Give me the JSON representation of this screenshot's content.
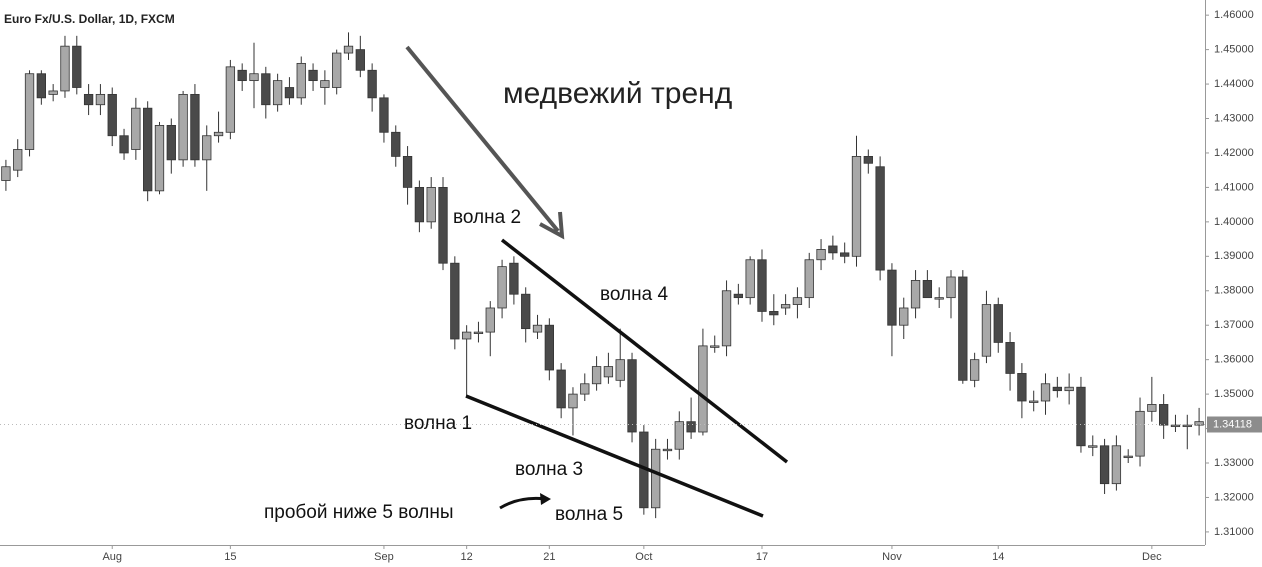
{
  "chart_data": {
    "type": "candlestick",
    "title": "Euro Fx/U.S. Dollar, 1D, FXCM",
    "categories": [
      null,
      null,
      null,
      null,
      null,
      null,
      null,
      null,
      null,
      "Aug",
      null,
      null,
      null,
      null,
      null,
      null,
      null,
      null,
      null,
      "15",
      null,
      null,
      null,
      null,
      null,
      null,
      null,
      null,
      null,
      null,
      null,
      null,
      "Sep",
      null,
      null,
      null,
      null,
      null,
      null,
      "12",
      null,
      null,
      null,
      null,
      null,
      null,
      "21",
      null,
      null,
      null,
      null,
      null,
      null,
      null,
      "Oct",
      null,
      null,
      null,
      null,
      null,
      null,
      null,
      null,
      null,
      "17",
      null,
      null,
      null,
      null,
      null,
      null,
      null,
      null,
      null,
      null,
      "Nov",
      null,
      null,
      null,
      null,
      null,
      null,
      null,
      null,
      "14",
      null,
      null,
      null,
      null,
      null,
      null,
      null,
      null,
      null,
      null,
      null,
      null,
      "Dec",
      null,
      null,
      null,
      null
    ],
    "open": [
      1.412,
      1.415,
      1.421,
      1.443,
      1.437,
      1.438,
      1.451,
      1.437,
      1.434,
      1.437,
      1.425,
      1.421,
      1.433,
      1.409,
      1.428,
      1.418,
      1.437,
      1.418,
      1.425,
      1.426,
      1.444,
      1.441,
      1.443,
      1.434,
      1.439,
      1.436,
      1.444,
      1.439,
      1.439,
      1.449,
      1.45,
      1.444,
      1.436,
      1.426,
      1.419,
      1.41,
      1.4,
      1.41,
      1.388,
      1.366,
      1.368,
      1.368,
      1.375,
      1.388,
      1.379,
      1.368,
      1.37,
      1.357,
      1.346,
      1.35,
      1.353,
      1.355,
      1.354,
      1.36,
      1.339,
      1.317,
      1.334,
      1.334,
      1.342,
      1.339,
      1.364,
      1.364,
      1.379,
      1.378,
      1.389,
      1.374,
      1.375,
      1.376,
      1.378,
      1.389,
      1.393,
      1.391,
      1.39,
      1.419,
      1.416,
      1.386,
      1.37,
      1.375,
      1.383,
      1.378,
      1.378,
      1.384,
      1.354,
      1.361,
      1.376,
      1.365,
      1.356,
      1.348,
      1.348,
      1.352,
      1.351,
      1.352,
      1.335,
      1.335,
      1.324,
      1.332,
      1.332,
      1.345,
      1.347,
      1.341,
      1.341,
      1.341
    ],
    "high": [
      1.418,
      1.424,
      1.444,
      1.444,
      1.44,
      1.454,
      1.454,
      1.44,
      1.44,
      1.439,
      1.427,
      1.436,
      1.435,
      1.429,
      1.43,
      1.438,
      1.44,
      1.428,
      1.432,
      1.447,
      1.446,
      1.452,
      1.445,
      1.443,
      1.442,
      1.448,
      1.446,
      1.444,
      1.45,
      1.455,
      1.454,
      1.446,
      1.437,
      1.428,
      1.422,
      1.412,
      1.413,
      1.413,
      1.39,
      1.37,
      1.371,
      1.377,
      1.389,
      1.39,
      1.381,
      1.373,
      1.372,
      1.359,
      1.352,
      1.356,
      1.361,
      1.362,
      1.369,
      1.362,
      1.341,
      1.337,
      1.337,
      1.345,
      1.349,
      1.369,
      1.367,
      1.383,
      1.382,
      1.39,
      1.392,
      1.379,
      1.379,
      1.381,
      1.391,
      1.395,
      1.396,
      1.394,
      1.425,
      1.421,
      1.419,
      1.388,
      1.378,
      1.386,
      1.386,
      1.381,
      1.386,
      1.386,
      1.362,
      1.38,
      1.378,
      1.368,
      1.359,
      1.351,
      1.356,
      1.355,
      1.356,
      1.355,
      1.338,
      1.337,
      1.338,
      1.334,
      1.349,
      1.355,
      1.35,
      1.344,
      1.344,
      1.346
    ],
    "low": [
      1.409,
      1.413,
      1.419,
      1.434,
      1.435,
      1.436,
      1.437,
      1.431,
      1.431,
      1.422,
      1.418,
      1.418,
      1.406,
      1.408,
      1.414,
      1.416,
      1.416,
      1.409,
      1.423,
      1.424,
      1.438,
      1.433,
      1.43,
      1.432,
      1.434,
      1.434,
      1.438,
      1.434,
      1.437,
      1.447,
      1.442,
      1.432,
      1.423,
      1.416,
      1.405,
      1.397,
      1.398,
      1.386,
      1.363,
      1.349,
      1.365,
      1.361,
      1.372,
      1.376,
      1.365,
      1.366,
      1.354,
      1.343,
      1.338,
      1.348,
      1.351,
      1.353,
      1.352,
      1.336,
      1.315,
      1.314,
      1.331,
      1.331,
      1.337,
      1.338,
      1.362,
      1.361,
      1.376,
      1.376,
      1.371,
      1.37,
      1.373,
      1.372,
      1.375,
      1.386,
      1.389,
      1.388,
      1.387,
      1.414,
      1.383,
      1.361,
      1.366,
      1.372,
      1.378,
      1.375,
      1.372,
      1.353,
      1.352,
      1.359,
      1.362,
      1.351,
      1.343,
      1.345,
      1.344,
      1.349,
      1.347,
      1.333,
      1.332,
      1.321,
      1.322,
      1.33,
      1.329,
      1.342,
      1.337,
      1.339,
      1.334,
      1.338
    ],
    "close": [
      1.416,
      1.421,
      1.443,
      1.436,
      1.438,
      1.451,
      1.439,
      1.434,
      1.437,
      1.425,
      1.42,
      1.433,
      1.409,
      1.428,
      1.418,
      1.437,
      1.418,
      1.425,
      1.426,
      1.445,
      1.441,
      1.443,
      1.434,
      1.441,
      1.436,
      1.446,
      1.441,
      1.441,
      1.449,
      1.451,
      1.444,
      1.436,
      1.426,
      1.419,
      1.41,
      1.4,
      1.41,
      1.388,
      1.366,
      1.368,
      1.368,
      1.375,
      1.387,
      1.379,
      1.369,
      1.37,
      1.357,
      1.346,
      1.35,
      1.353,
      1.358,
      1.358,
      1.36,
      1.339,
      1.317,
      1.334,
      1.334,
      1.342,
      1.339,
      1.364,
      1.364,
      1.38,
      1.378,
      1.389,
      1.374,
      1.373,
      1.376,
      1.378,
      1.389,
      1.392,
      1.391,
      1.39,
      1.419,
      1.417,
      1.386,
      1.37,
      1.375,
      1.383,
      1.378,
      1.378,
      1.384,
      1.354,
      1.36,
      1.376,
      1.365,
      1.356,
      1.348,
      1.348,
      1.353,
      1.351,
      1.352,
      1.335,
      1.335,
      1.324,
      1.335,
      1.332,
      1.345,
      1.347,
      1.341,
      1.341,
      1.341,
      1.342
    ],
    "up_color": "#a8a8a8",
    "down_color": "#4a4a4a",
    "ylim": [
      1.3062,
      1.4644
    ],
    "yticks": [
      {
        "value": 1.31,
        "label": "1.31000"
      },
      {
        "value": 1.32,
        "label": "1.32000"
      },
      {
        "value": 1.33,
        "label": "1.33000"
      },
      {
        "value": 1.34,
        "label": "1.34000"
      },
      {
        "value": 1.35,
        "label": "1.35000"
      },
      {
        "value": 1.36,
        "label": "1.36000"
      },
      {
        "value": 1.37,
        "label": "1.37000"
      },
      {
        "value": 1.38,
        "label": "1.38000"
      },
      {
        "value": 1.39,
        "label": "1.39000"
      },
      {
        "value": 1.4,
        "label": "1.40000"
      },
      {
        "value": 1.41,
        "label": "1.41000"
      },
      {
        "value": 1.42,
        "label": "1.42000"
      },
      {
        "value": 1.43,
        "label": "1.43000"
      },
      {
        "value": 1.44,
        "label": "1.44000"
      },
      {
        "value": 1.45,
        "label": "1.45000"
      },
      {
        "value": 1.46,
        "label": "1.46000"
      }
    ],
    "last_price": 1.34118,
    "annotations": [
      "медвежий тренд",
      "волна 2",
      "волна 4",
      "волна 1",
      "волна 3",
      "волна 5",
      "пробой ниже 5 волны"
    ]
  }
}
